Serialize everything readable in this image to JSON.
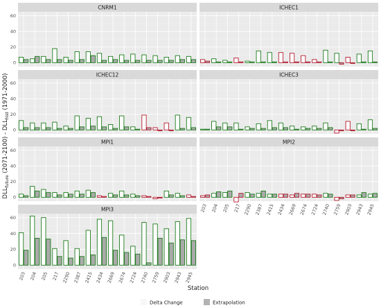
{
  "chart_data": {
    "type": "bar",
    "ylabel_main": "DLL",
    "ylabel_future_sub": "future",
    "ylabel_mid": " (2071-2100) - DLL",
    "ylabel_hist_sub": "hist",
    "ylabel_end": " (1971-2000)",
    "xlabel": "Station",
    "ylim": [
      0,
      65
    ],
    "yticks": [
      0,
      20,
      40,
      60
    ],
    "stations": [
      "203",
      "204",
      "205",
      "217",
      "2290",
      "2387",
      "2415",
      "2434",
      "2669",
      "2674",
      "2724",
      "2740",
      "2759",
      "2903",
      "2943",
      "2945"
    ],
    "legend": [
      {
        "name": "Delta Change",
        "color": "#f7f7f7"
      },
      {
        "name": "Extrapolation",
        "color": "#b3b3b3"
      }
    ],
    "colors": {
      "positive": "#1a7a1a",
      "negative": "#b2182b",
      "delta_fill": "#ffffff",
      "extrap_fill": "#aaaaaa"
    },
    "panels": [
      {
        "name": "CNRM1",
        "delta": [
          7,
          5,
          8,
          18,
          7,
          14,
          14,
          12,
          8,
          10,
          11,
          10,
          9,
          7,
          9,
          8
        ],
        "extrap": [
          4,
          8,
          4,
          4,
          3,
          4,
          9,
          3,
          4,
          3,
          3,
          3,
          3,
          3,
          4,
          4
        ]
      },
      {
        "name": "ICHEC1",
        "delta": [
          4,
          5,
          3,
          6,
          2,
          15,
          13,
          13,
          12,
          9,
          4,
          16,
          12,
          7,
          11,
          15
        ],
        "extrap": [
          2,
          1,
          1,
          1,
          1,
          1,
          1,
          1,
          1,
          1,
          1,
          1,
          -2,
          -1,
          1,
          1
        ]
      },
      {
        "name": "ICHEC12",
        "delta": [
          12,
          9,
          9,
          10,
          5,
          18,
          15,
          17,
          7,
          18,
          4,
          19,
          3,
          9,
          19,
          16
        ],
        "extrap": [
          3,
          3,
          3,
          2,
          2,
          4,
          5,
          4,
          2,
          4,
          1,
          3,
          -1,
          -1,
          2,
          3
        ]
      },
      {
        "name": "ICHEC3",
        "delta": [
          1,
          11,
          9,
          9,
          4,
          8,
          12,
          9,
          5,
          4,
          5,
          9,
          -4,
          11,
          8,
          13
        ],
        "extrap": [
          1,
          4,
          4,
          1,
          2,
          2,
          3,
          3,
          1,
          2,
          2,
          3,
          -1,
          -1,
          1,
          2
        ]
      },
      {
        "name": "MPI1",
        "delta": [
          4,
          14,
          10,
          6,
          6,
          8,
          9,
          2,
          5,
          8,
          4,
          2,
          -2,
          8,
          5,
          3
        ],
        "extrap": [
          2,
          8,
          6,
          3,
          4,
          4,
          6,
          1,
          3,
          3,
          2,
          1,
          -1,
          3,
          2,
          1
        ]
      },
      {
        "name": "MPI2",
        "delta": [
          2,
          5,
          6,
          -6,
          6,
          5,
          4,
          4,
          3,
          4,
          4,
          5,
          -4,
          3,
          3,
          4
        ],
        "extrap": [
          3,
          7,
          8,
          5,
          4,
          8,
          4,
          4,
          5,
          4,
          3,
          4,
          -2,
          3,
          6,
          5
        ]
      },
      {
        "name": "MPI3",
        "delta": [
          41,
          62,
          60,
          21,
          31,
          21,
          44,
          58,
          56,
          38,
          24,
          54,
          52,
          46,
          55,
          59
        ],
        "extrap": [
          19,
          34,
          33,
          11,
          9,
          11,
          13,
          35,
          19,
          16,
          14,
          3,
          34,
          28,
          32,
          31
        ]
      }
    ]
  }
}
